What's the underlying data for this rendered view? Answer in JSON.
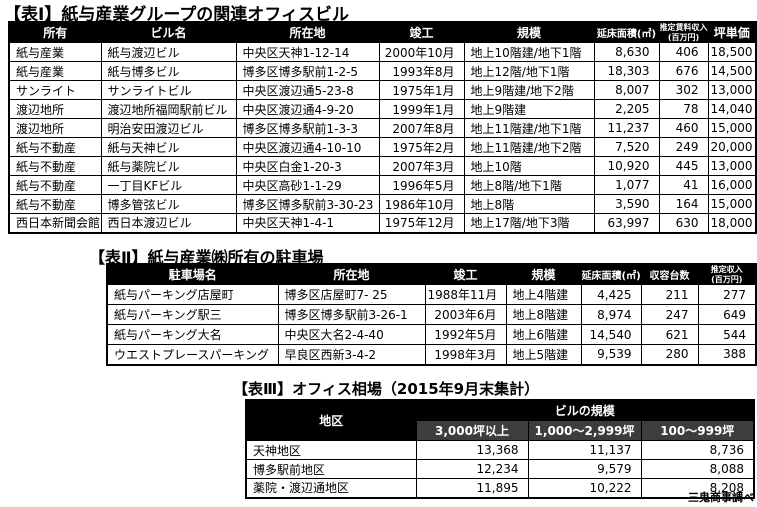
{
  "table1": {
    "title": "【表Ⅰ】紙与産業グループの関連オフィスビル",
    "headers": {
      "owner": "所有",
      "building_name": "ビル名",
      "address": "所在地",
      "completion": "竣工",
      "scale": "規模",
      "floor_area": "延床面積(㎡)",
      "rent_income_line1": "推定賃料収入",
      "rent_income_line2": "(百万円)",
      "tsubo_unit_price": "坪単価"
    },
    "rows": [
      [
        "紙与産業",
        "紙与渡辺ビル",
        "中央区天神1-12-14",
        "2000年10月",
        "地上10階建/地下1階",
        "8,630",
        "406",
        "18,500"
      ],
      [
        "紙与産業",
        "紙与博多ビル",
        "博多区博多駅前1-2-5",
        "1993年8月",
        "地上12階/地下1階",
        "18,303",
        "676",
        "14,500"
      ],
      [
        "サンライト",
        "サンライトビル",
        "中央区渡辺通5-23-8",
        "1975年1月",
        "地上9階建/地下2階",
        "8,007",
        "302",
        "13,000"
      ],
      [
        "渡辺地所",
        "渡辺地所福岡駅前ビル",
        "中央区渡辺通4-9-20",
        "1999年1月",
        "地上9階建",
        "2,205",
        "78",
        "14,040"
      ],
      [
        "渡辺地所",
        "明治安田渡辺ビル",
        "博多区博多駅前1-3-3",
        "2007年8月",
        "地上11階建/地下1階",
        "11,237",
        "460",
        "15,000"
      ],
      [
        "紙与不動産",
        "紙与天神ビル",
        "中央区渡辺通4-10-10",
        "1975年2月",
        "地上11階建/地下2階",
        "7,520",
        "249",
        "20,000"
      ],
      [
        "紙与不動産",
        "紙与薬院ビル",
        "中央区白金1-20-3",
        "2007年3月",
        "地上10階",
        "10,920",
        "445",
        "13,000"
      ],
      [
        "紙与不動産",
        "一丁目KFビル",
        "中央区高砂1-1-29",
        "1996年5月",
        "地上8階/地下1階",
        "1,077",
        "41",
        "16,000"
      ],
      [
        "紙与不動産",
        "博多管弦ビル",
        "博多区博多駅前3-30-23",
        "1986年10月",
        "地上8階",
        "3,590",
        "164",
        "15,000"
      ],
      [
        "西日本新聞会館",
        "西日本渡辺ビル",
        "中央区天神1-4-1",
        "1975年12月",
        "地上17階/地下3階",
        "63,997",
        "630",
        "18,000"
      ]
    ]
  },
  "table2": {
    "title": "【表Ⅱ】紙与産業㈱所有の駐車場",
    "headers": {
      "parking_name": "駐車場名",
      "address": "所在地",
      "completion": "竣工",
      "scale": "規模",
      "floor_area": "延床面積(㎡)",
      "capacity": "収容台数",
      "income_line1": "推定収入",
      "income_line2": "(百万円)"
    },
    "rows": [
      [
        "紙与パーキング店屋町",
        "博多区店屋町7- 25",
        "1988年11月",
        "地上4階建",
        "4,425",
        "211",
        "277"
      ],
      [
        "紙与パーキング駅三",
        "博多区博多駅前3-26-1",
        "2003年6月",
        "地上8階建",
        "8,974",
        "247",
        "649"
      ],
      [
        "紙与パーキング大名",
        "中央区大名2-4-40",
        "1992年5月",
        "地上6階建",
        "14,540",
        "621",
        "544"
      ],
      [
        "ウエストプレースパーキング",
        "早良区西新3-4-2",
        "1998年3月",
        "地上5階建",
        "9,539",
        "280",
        "388"
      ]
    ]
  },
  "table3": {
    "title": "【表Ⅲ】オフィス相場（2015年9月末集計）",
    "headers": {
      "district": "地区",
      "building_scale": "ビルの規模",
      "size_3000_over": "3,000坪以上",
      "size_1000_2999": "1,000～2,999坪",
      "size_100_999": "100～999坪"
    },
    "rows": [
      [
        "天神地区",
        "13,368",
        "11,137",
        "8,736"
      ],
      [
        "博多駅前地区",
        "12,234",
        "9,579",
        "8,088"
      ],
      [
        "薬院・渡辺通地区",
        "11,895",
        "10,222",
        "8,208"
      ]
    ]
  },
  "footer": {
    "source_credit": "三鬼商事調べ"
  }
}
